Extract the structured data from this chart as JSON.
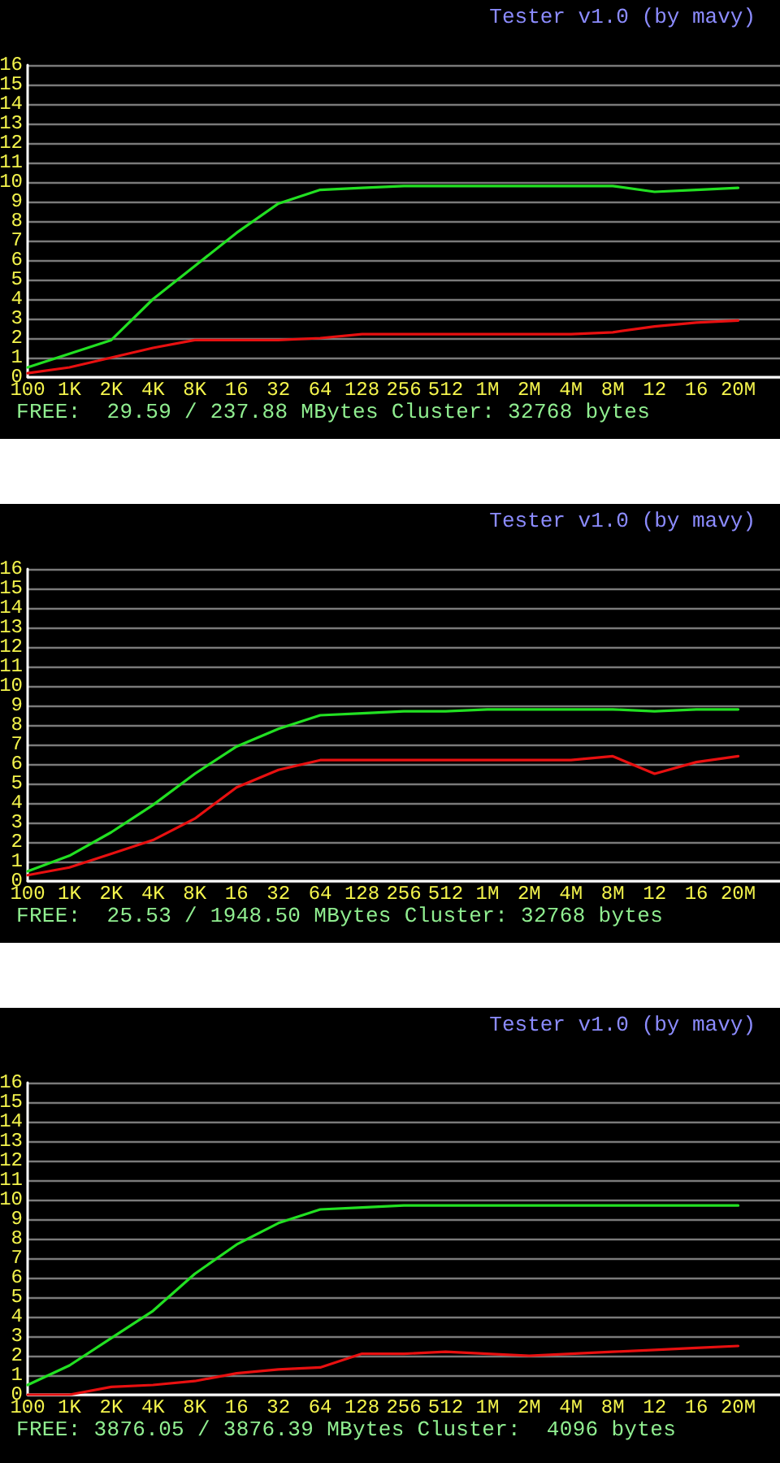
{
  "chart_data": [
    {
      "type": "line",
      "title": "Tester v1.0 (by mavy)",
      "categories": [
        "100",
        "1K",
        "2K",
        "4K",
        "8K",
        "16",
        "32",
        "64",
        "128",
        "256",
        "512",
        "1M",
        "2M",
        "4M",
        "8M",
        "12",
        "16",
        "20M"
      ],
      "series": [
        {
          "color": "#22e022",
          "values": [
            0.5,
            1.2,
            1.9,
            4.0,
            5.7,
            7.4,
            8.9,
            9.6,
            9.7,
            9.8,
            9.8,
            9.8,
            9.8,
            9.8,
            9.8,
            9.5,
            9.6,
            9.7
          ]
        },
        {
          "color": "#e81010",
          "values": [
            0.2,
            0.5,
            1.0,
            1.5,
            1.9,
            1.9,
            1.9,
            2.0,
            2.2,
            2.2,
            2.2,
            2.2,
            2.2,
            2.2,
            2.3,
            2.6,
            2.8,
            2.9
          ]
        }
      ],
      "ylim": [
        0,
        16
      ],
      "yticks": [
        0,
        1,
        2,
        3,
        4,
        5,
        6,
        7,
        8,
        9,
        10,
        11,
        12,
        13,
        14,
        15,
        16
      ],
      "grid": "y",
      "annotations": [
        "FREE:  29.59 / 237.88 MBytes Cluster: 32768 bytes"
      ]
    },
    {
      "type": "line",
      "title": "Tester v1.0 (by mavy)",
      "categories": [
        "100",
        "1K",
        "2K",
        "4K",
        "8K",
        "16",
        "32",
        "64",
        "128",
        "256",
        "512",
        "1M",
        "2M",
        "4M",
        "8M",
        "12",
        "16",
        "20M"
      ],
      "series": [
        {
          "color": "#22e022",
          "values": [
            0.5,
            1.3,
            2.5,
            3.9,
            5.5,
            6.9,
            7.8,
            8.5,
            8.6,
            8.7,
            8.7,
            8.8,
            8.8,
            8.8,
            8.8,
            8.7,
            8.8,
            8.8
          ]
        },
        {
          "color": "#e81010",
          "values": [
            0.3,
            0.7,
            1.4,
            2.1,
            3.2,
            4.8,
            5.7,
            6.2,
            6.2,
            6.2,
            6.2,
            6.2,
            6.2,
            6.2,
            6.4,
            5.5,
            6.1,
            6.4
          ]
        }
      ],
      "ylim": [
        0,
        16
      ],
      "yticks": [
        0,
        1,
        2,
        3,
        4,
        5,
        6,
        7,
        8,
        9,
        10,
        11,
        12,
        13,
        14,
        15,
        16
      ],
      "grid": "y",
      "annotations": [
        "FREE:  25.53 / 1948.50 MBytes Cluster: 32768 bytes"
      ]
    },
    {
      "type": "line",
      "title": "Tester v1.0 (by mavy)",
      "categories": [
        "100",
        "1K",
        "2K",
        "4K",
        "8K",
        "16",
        "32",
        "64",
        "128",
        "256",
        "512",
        "1M",
        "2M",
        "4M",
        "8M",
        "12",
        "16",
        "20M"
      ],
      "series": [
        {
          "color": "#22e022",
          "values": [
            0.5,
            1.5,
            2.9,
            4.3,
            6.2,
            7.7,
            8.8,
            9.5,
            9.6,
            9.7,
            9.7,
            9.7,
            9.7,
            9.7,
            9.7,
            9.7,
            9.7,
            9.7
          ]
        },
        {
          "color": "#e81010",
          "values": [
            0.0,
            0.0,
            0.4,
            0.5,
            0.7,
            1.1,
            1.3,
            1.4,
            2.1,
            2.1,
            2.2,
            2.1,
            2.0,
            2.1,
            2.2,
            2.3,
            2.4,
            2.5
          ]
        }
      ],
      "ylim": [
        0,
        16
      ],
      "yticks": [
        0,
        1,
        2,
        3,
        4,
        5,
        6,
        7,
        8,
        9,
        10,
        11,
        12,
        13,
        14,
        15,
        16
      ],
      "grid": "y",
      "annotations": [
        "FREE: 3876.05 / 3876.39 MBytes Cluster:  4096 bytes"
      ]
    }
  ]
}
